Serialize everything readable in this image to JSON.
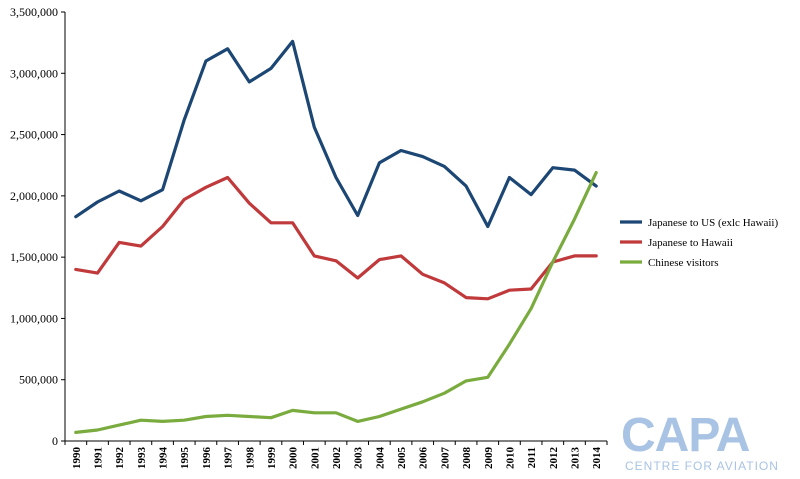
{
  "chart_data": {
    "type": "line",
    "categories": [
      "1990",
      "1991",
      "1992",
      "1993",
      "1994",
      "1995",
      "1996",
      "1997",
      "1998",
      "1999",
      "2000",
      "2001",
      "2002",
      "2003",
      "2004",
      "2005",
      "2006",
      "2007",
      "2008",
      "2009",
      "2010",
      "2011",
      "2012",
      "2013",
      "2014"
    ],
    "ylim": [
      0,
      3500000
    ],
    "yticks": [
      "0",
      "500,000",
      "1,000,000",
      "1,500,000",
      "2,000,000",
      "2,500,000",
      "3,000,000",
      "3,500,000"
    ],
    "grid": false,
    "legend_position": "right",
    "series": [
      {
        "name": "Japanese to US (exlc Hawaii)",
        "color": "#1c4673",
        "values": [
          1830000,
          1950000,
          2040000,
          1960000,
          2050000,
          2620000,
          3100000,
          3200000,
          2930000,
          3040000,
          3260000,
          2560000,
          2150000,
          1840000,
          2270000,
          2370000,
          2320000,
          2240000,
          2080000,
          1750000,
          2150000,
          2010000,
          2230000,
          2210000,
          2080000
        ]
      },
      {
        "name": "Japanese to Hawaii",
        "color": "#c0393b",
        "values": [
          1400000,
          1370000,
          1620000,
          1590000,
          1750000,
          1970000,
          2070000,
          2150000,
          1940000,
          1780000,
          1780000,
          1510000,
          1470000,
          1330000,
          1480000,
          1510000,
          1360000,
          1290000,
          1170000,
          1160000,
          1230000,
          1240000,
          1460000,
          1510000,
          1510000
        ]
      },
      {
        "name": "Chinese visitors",
        "color": "#7aab3e",
        "values": [
          70000,
          90000,
          130000,
          170000,
          160000,
          170000,
          200000,
          210000,
          200000,
          190000,
          250000,
          230000,
          230000,
          160000,
          200000,
          260000,
          320000,
          390000,
          490000,
          520000,
          790000,
          1080000,
          1460000,
          1810000,
          2190000
        ]
      }
    ]
  },
  "logo": {
    "word": "CAPA",
    "subtitle": "CENTRE FOR AVIATION"
  }
}
